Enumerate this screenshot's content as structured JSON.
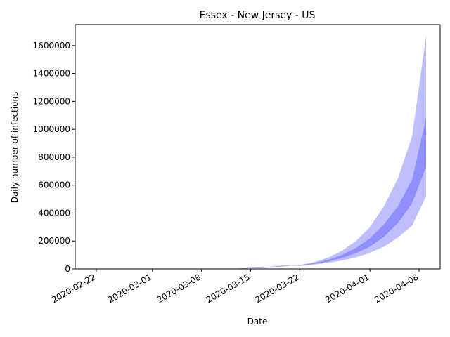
{
  "chart_data": {
    "type": "area",
    "title": "Essex - New Jersey - US",
    "xlabel": "Date",
    "ylabel": "Daily number of infections",
    "x_ticks": [
      "2020-02-22",
      "2020-03-01",
      "2020-03-08",
      "2020-03-15",
      "2020-03-22",
      "2020-04-01",
      "2020-04-08"
    ],
    "y_ticks": [
      0,
      200000,
      400000,
      600000,
      800000,
      1000000,
      1200000,
      1400000,
      1600000
    ],
    "xlim": [
      "2020-02-19",
      "2020-04-11"
    ],
    "ylim": [
      0,
      1750000
    ],
    "grid": false,
    "color": "#0000ff",
    "x": [
      "2020-03-08",
      "2020-03-10",
      "2020-03-12",
      "2020-03-14",
      "2020-03-16",
      "2020-03-18",
      "2020-03-20",
      "2020-03-21",
      "2020-03-22",
      "2020-03-24",
      "2020-03-26",
      "2020-03-28",
      "2020-03-30",
      "2020-04-01",
      "2020-04-03",
      "2020-04-05",
      "2020-04-07",
      "2020-04-09"
    ],
    "series": [
      {
        "band": "outer",
        "lower": [
          0,
          300,
          900,
          2500,
          5000,
          10000,
          19000,
          24000,
          22000,
          30000,
          43000,
          60000,
          83000,
          115000,
          160000,
          225000,
          310000,
          520000
        ],
        "upper": [
          0,
          600,
          1800,
          5000,
          10000,
          17000,
          26000,
          29000,
          28000,
          48000,
          80000,
          130000,
          200000,
          300000,
          450000,
          650000,
          950000,
          1670000
        ]
      },
      {
        "band": "inner",
        "lower": [
          0,
          400,
          1200,
          3200,
          6500,
          12000,
          21000,
          26000,
          24000,
          35000,
          52000,
          78000,
          113000,
          160000,
          230000,
          330000,
          470000,
          730000
        ],
        "upper": [
          0,
          500,
          1500,
          4200,
          8500,
          14500,
          24000,
          28000,
          26000,
          41000,
          65000,
          100000,
          150000,
          220000,
          320000,
          450000,
          640000,
          1080000
        ]
      }
    ]
  }
}
